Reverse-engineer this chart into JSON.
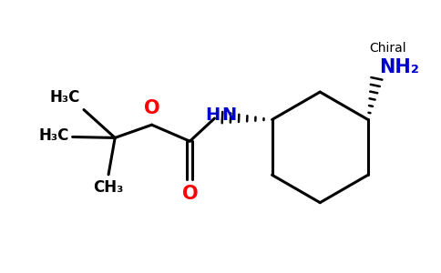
{
  "bg_color": "#ffffff",
  "line_color": "#000000",
  "blue": "#0000cc",
  "red": "#ff0000",
  "chiral_text": "Chiral",
  "nh2_text": "NH₂",
  "o_ether_text": "O",
  "o_carbonyl_text": "O",
  "h3c_top": "H₃C",
  "h3c_mid": "H₃C",
  "ch3_bot": "CH₃",
  "figsize": [
    4.84,
    3.0
  ],
  "dpi": 100
}
